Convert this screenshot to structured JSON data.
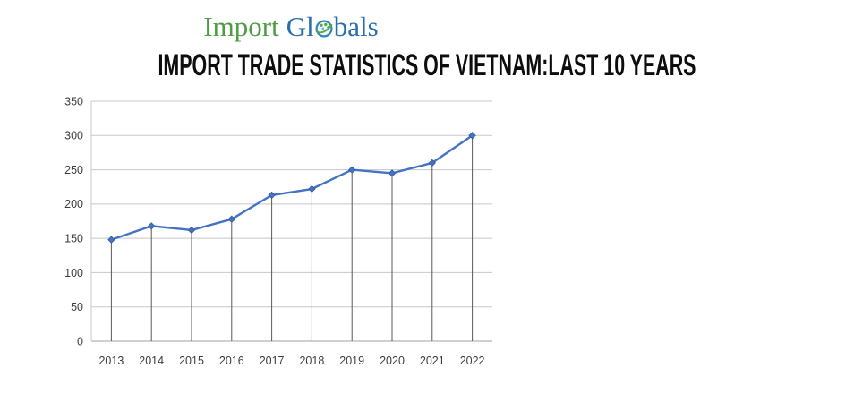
{
  "logo": {
    "import_text": "Import",
    "globals_prefix": "Gl",
    "globals_suffix": "bals",
    "import_color": "#4e9b44",
    "globals_color": "#2a6dad"
  },
  "title": "IMPORT TRADE STATISTICS OF VIETNAM:LAST 10 YEARS",
  "chart_data": {
    "type": "line",
    "title": "IMPORT TRADE STATISTICS OF VIETNAM:LAST 10 YEARS",
    "categories": [
      "2013",
      "2014",
      "2015",
      "2016",
      "2017",
      "2018",
      "2019",
      "2020",
      "2021",
      "2022"
    ],
    "values": [
      148,
      168,
      162,
      178,
      213,
      222,
      250,
      245,
      260,
      300
    ],
    "xlabel": "",
    "ylabel": "",
    "ylim": [
      0,
      350
    ],
    "yticks": [
      0,
      50,
      100,
      150,
      200,
      250,
      300,
      350
    ],
    "grid": true,
    "legend": false,
    "line_color": "#4472C4",
    "marker": "diamond",
    "marker_edge_color": "#35599c",
    "drop_lines": true,
    "drop_line_color": "#595959",
    "gridline_color": "#c8c8c8",
    "axis_line_color": "#a0a0a0",
    "tick_label_color": "#3d3d3d"
  }
}
